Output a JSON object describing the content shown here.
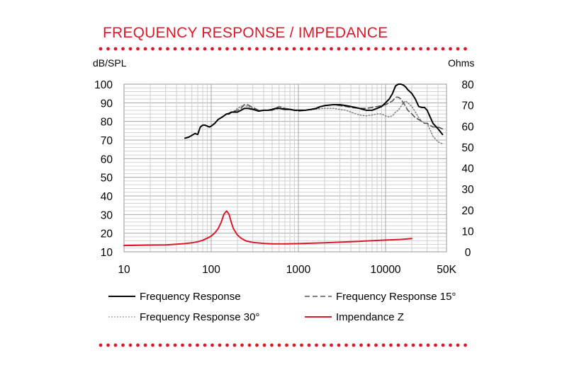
{
  "title": "FREQUENCY RESPONSE / IMPEDANCE",
  "accent_color": "#d91a2a",
  "chart_data": {
    "type": "line",
    "x_scale": "log",
    "xlim": [
      10,
      50000
    ],
    "ylim_left": [
      10,
      100
    ],
    "ylim_right": [
      0,
      80
    ],
    "ylabel_left": "dB/SPL",
    "ylabel_right": "Ohms",
    "grid": true,
    "x_tick_labels": [
      "10",
      "100",
      "1000",
      "10000",
      "50K"
    ],
    "y_left_tick_labels": [
      "10",
      "20",
      "30",
      "40",
      "50",
      "60",
      "70",
      "80",
      "90",
      "100"
    ],
    "y_right_tick_labels": [
      "0",
      "10",
      "20",
      "30",
      "40",
      "50",
      "60",
      "70",
      "80"
    ],
    "legend_position": "bottom",
    "series": [
      {
        "name": "Frequency Response",
        "axis": "left",
        "color": "#000000",
        "style": "solid",
        "points": [
          [
            50,
            71
          ],
          [
            55,
            71.5
          ],
          [
            60,
            72.5
          ],
          [
            65,
            73.5
          ],
          [
            70,
            73
          ],
          [
            75,
            77
          ],
          [
            80,
            78
          ],
          [
            85,
            78
          ],
          [
            90,
            77.5
          ],
          [
            95,
            77
          ],
          [
            100,
            77.5
          ],
          [
            110,
            79
          ],
          [
            120,
            81
          ],
          [
            130,
            82
          ],
          [
            140,
            83
          ],
          [
            150,
            84
          ],
          [
            160,
            84
          ],
          [
            170,
            85
          ],
          [
            180,
            85
          ],
          [
            200,
            85
          ],
          [
            220,
            86
          ],
          [
            240,
            87
          ],
          [
            260,
            87
          ],
          [
            300,
            86.5
          ],
          [
            350,
            85.5
          ],
          [
            400,
            86
          ],
          [
            450,
            86
          ],
          [
            500,
            86.5
          ],
          [
            550,
            87
          ],
          [
            600,
            87
          ],
          [
            700,
            86.5
          ],
          [
            800,
            86.5
          ],
          [
            900,
            86
          ],
          [
            1000,
            86
          ],
          [
            1200,
            86
          ],
          [
            1400,
            86.5
          ],
          [
            1600,
            87
          ],
          [
            1800,
            88
          ],
          [
            2000,
            88.5
          ],
          [
            2500,
            89
          ],
          [
            3000,
            89
          ],
          [
            3500,
            88.5
          ],
          [
            4000,
            88
          ],
          [
            5000,
            87
          ],
          [
            6000,
            86
          ],
          [
            7000,
            86
          ],
          [
            8000,
            87
          ],
          [
            9000,
            88
          ],
          [
            10000,
            90
          ],
          [
            11000,
            92
          ],
          [
            12000,
            95
          ],
          [
            13000,
            99
          ],
          [
            14000,
            100
          ],
          [
            15000,
            100
          ],
          [
            16000,
            99.5
          ],
          [
            17000,
            98.5
          ],
          [
            18000,
            97
          ],
          [
            20000,
            95
          ],
          [
            22000,
            92
          ],
          [
            24000,
            88
          ],
          [
            26000,
            87.5
          ],
          [
            28000,
            87.5
          ],
          [
            30000,
            86
          ],
          [
            32000,
            83
          ],
          [
            35000,
            79
          ],
          [
            40000,
            76
          ],
          [
            45000,
            73
          ]
        ]
      },
      {
        "name": "Frequency Response 15°",
        "axis": "left",
        "color": "#555555",
        "style": "dashed",
        "points": [
          [
            150,
            84
          ],
          [
            170,
            85
          ],
          [
            200,
            86
          ],
          [
            220,
            87
          ],
          [
            240,
            89
          ],
          [
            260,
            89
          ],
          [
            300,
            87.5
          ],
          [
            350,
            86
          ],
          [
            400,
            86
          ],
          [
            500,
            86
          ],
          [
            600,
            88
          ],
          [
            700,
            87
          ],
          [
            800,
            86.5
          ],
          [
            1000,
            85.5
          ],
          [
            1200,
            86
          ],
          [
            1500,
            86.5
          ],
          [
            2000,
            88.5
          ],
          [
            2500,
            89
          ],
          [
            3000,
            88.5
          ],
          [
            3500,
            88
          ],
          [
            4000,
            87.5
          ],
          [
            5000,
            87
          ],
          [
            6000,
            87
          ],
          [
            7000,
            87.5
          ],
          [
            8000,
            88
          ],
          [
            9000,
            88.5
          ],
          [
            10000,
            89
          ],
          [
            11000,
            90
          ],
          [
            12000,
            91
          ],
          [
            13000,
            93
          ],
          [
            14000,
            93
          ],
          [
            15000,
            92
          ],
          [
            16000,
            90
          ],
          [
            17000,
            88
          ],
          [
            18000,
            86
          ],
          [
            20000,
            84
          ],
          [
            22000,
            82
          ],
          [
            24000,
            81
          ],
          [
            26000,
            80
          ],
          [
            28000,
            79
          ],
          [
            30000,
            79
          ],
          [
            32000,
            78
          ],
          [
            35000,
            77
          ],
          [
            40000,
            77
          ],
          [
            45000,
            76
          ]
        ]
      },
      {
        "name": "Frequency Response 30°",
        "axis": "left",
        "color": "#888888",
        "style": "dotted",
        "points": [
          [
            150,
            84
          ],
          [
            180,
            85
          ],
          [
            200,
            87
          ],
          [
            220,
            88
          ],
          [
            240,
            89
          ],
          [
            260,
            88
          ],
          [
            300,
            87
          ],
          [
            350,
            86
          ],
          [
            400,
            86
          ],
          [
            500,
            86
          ],
          [
            600,
            87
          ],
          [
            700,
            87
          ],
          [
            800,
            86.5
          ],
          [
            1000,
            86
          ],
          [
            1200,
            86
          ],
          [
            1500,
            86.5
          ],
          [
            2000,
            87
          ],
          [
            2500,
            87
          ],
          [
            3000,
            86.5
          ],
          [
            3500,
            86
          ],
          [
            4000,
            85
          ],
          [
            5000,
            83.5
          ],
          [
            6000,
            83
          ],
          [
            7000,
            83.5
          ],
          [
            8000,
            84
          ],
          [
            9000,
            84
          ],
          [
            10000,
            83
          ],
          [
            11000,
            82.5
          ],
          [
            12000,
            83
          ],
          [
            13000,
            85
          ],
          [
            14000,
            86
          ],
          [
            15000,
            88
          ],
          [
            16000,
            90
          ],
          [
            17000,
            91
          ],
          [
            18000,
            90
          ],
          [
            20000,
            88
          ],
          [
            22000,
            85
          ],
          [
            24000,
            82
          ],
          [
            26000,
            80
          ],
          [
            28000,
            79
          ],
          [
            30000,
            79
          ],
          [
            32000,
            76
          ],
          [
            35000,
            72
          ],
          [
            40000,
            69
          ],
          [
            45000,
            68
          ]
        ]
      },
      {
        "name": "Impendance Z",
        "axis": "right",
        "color": "#d91a2a",
        "style": "solid",
        "points": [
          [
            10,
            3
          ],
          [
            20,
            3.2
          ],
          [
            30,
            3.3
          ],
          [
            40,
            3.6
          ],
          [
            50,
            3.9
          ],
          [
            60,
            4.3
          ],
          [
            70,
            4.8
          ],
          [
            80,
            5.5
          ],
          [
            90,
            6.5
          ],
          [
            100,
            7.5
          ],
          [
            110,
            9
          ],
          [
            120,
            11
          ],
          [
            130,
            14
          ],
          [
            140,
            18
          ],
          [
            150,
            19.5
          ],
          [
            160,
            18
          ],
          [
            170,
            14
          ],
          [
            180,
            11
          ],
          [
            200,
            8
          ],
          [
            220,
            6.5
          ],
          [
            250,
            5.2
          ],
          [
            300,
            4.5
          ],
          [
            400,
            4.0
          ],
          [
            500,
            3.8
          ],
          [
            700,
            3.8
          ],
          [
            1000,
            3.9
          ],
          [
            2000,
            4.3
          ],
          [
            3000,
            4.6
          ],
          [
            5000,
            5.0
          ],
          [
            7000,
            5.3
          ],
          [
            10000,
            5.6
          ],
          [
            15000,
            5.9
          ],
          [
            20000,
            6.3
          ]
        ]
      }
    ]
  }
}
